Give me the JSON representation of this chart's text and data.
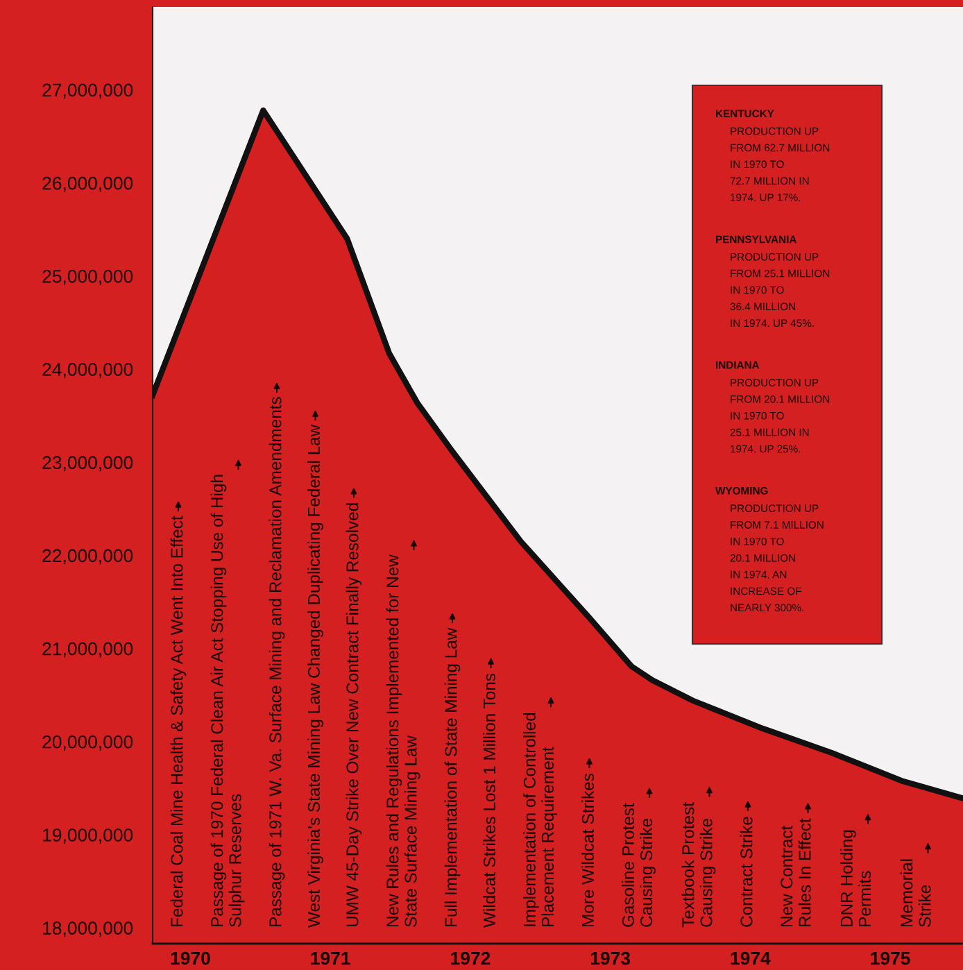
{
  "chart_data": {
    "type": "area",
    "x": [
      1969.73,
      1970.52,
      1971.12,
      1971.42,
      1971.62,
      1971.87,
      1972.36,
      1972.85,
      1973.15,
      1973.3,
      1973.59,
      1974.09,
      1974.58,
      1975.08,
      1975.52
    ],
    "series": [
      {
        "color": "#d42020",
        "values": [
          23720000,
          26780000,
          25400000,
          24170000,
          23640000,
          23120000,
          22150000,
          21330000,
          20810000,
          20660000,
          20440000,
          20140000,
          19880000,
          19580000,
          19390000
        ]
      }
    ],
    "xlim": [
      1969.73,
      1975.52
    ],
    "xticks": [
      1970,
      1971,
      1972,
      1973,
      1974,
      1975
    ],
    "ylim": [
      17830000,
      27890000
    ],
    "yticks": [
      {
        "value": 18000000,
        "label": "18,000,000"
      },
      {
        "value": 19000000,
        "label": "19,000,000"
      },
      {
        "value": 20000000,
        "label": "20,000,000"
      },
      {
        "value": 21000000,
        "label": "21,000,000"
      },
      {
        "value": 22000000,
        "label": "22,000,000"
      },
      {
        "value": 23000000,
        "label": "23,000,000"
      },
      {
        "value": 24000000,
        "label": "24,000,000"
      },
      {
        "value": 25000000,
        "label": "25,000,000"
      },
      {
        "value": 26000000,
        "label": "26,000,000"
      },
      {
        "value": 27000000,
        "label": "27,000,000"
      }
    ],
    "grid": false,
    "annotations": [
      "Federal Coal Mine Health & Safety Act Went Into Effect",
      "Passage of 1970 Federal Clean Air Act Stopping Use of High\nSulphur Reserves",
      "Passage of 1971 W. Va. Surface Mining and Reclamation Amendments",
      "West Virginia's State Mining Law Changed Duplicating Federal Law",
      "UMW 45-Day Strike Over New Contract Finally Resolved",
      "New Rules and Regulations Implemented for New\nState Surface Mining Law",
      "Full Implementation of State Mining Law",
      "Wildcat Strikes Lost 1 Million Tons",
      "Implementation of Controlled\nPlacement Requirement",
      "More Wildcat Strikes",
      "Gasoline Protest\nCausing Strike",
      "Textbook Protest\nCausing Strike",
      "Contract Strike",
      "New Contract\nRules In Effect",
      "DNR Holding\nPermits",
      "Memorial\nStrike",
      "KENTUCKY",
      "PRODUCTION UP\nFROM 62.7 MILLION\nIN 1970 TO\n72.7 MILLION IN\n1974. UP 17%.",
      "PENNSYLVANIA",
      "PRODUCTION UP\nFROM 25.1 MILLION\nIN 1970 TO\n36.4 MILLION\nIN 1974. UP 45%.",
      "INDIANA",
      "PRODUCTION UP\nFROM 20.1 MILLION\nIN 1970 TO\n25.1 MILLION IN\n1974. UP 25%.",
      "WYOMING",
      "PRODUCTION UP\nFROM 7.1 MILLION\nIN 1970 TO\n20.1 MILLION\nIN 1974. AN\nINCREASE OF\nNEARLY 300%."
    ]
  }
}
